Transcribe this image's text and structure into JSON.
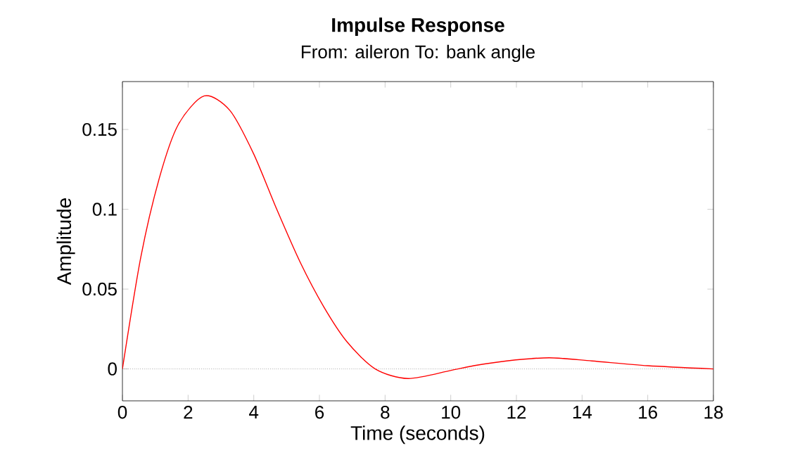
{
  "chart_data": {
    "type": "line",
    "title": "Impulse Response",
    "subtitle": "From: aileron  To: bank angle",
    "xlabel": "Time (seconds)",
    "ylabel": "Amplitude",
    "x": [
      0,
      0.56,
      1.13,
      1.7,
      2.49,
      3.27,
      3.99,
      4.7,
      5.41,
      6.13,
      6.84,
      7.7,
      8.7,
      9.99,
      10.7,
      11.7,
      13,
      14.3,
      16,
      18
    ],
    "series": [
      {
        "color": "#ff0000",
        "values": [
          0,
          0.07,
          0.12,
          0.153,
          0.171,
          0.162,
          0.135,
          0.1,
          0.067,
          0.039,
          0.017,
          0,
          -0.006,
          -0.001,
          0.002,
          0.005,
          0.007,
          0.005,
          0.002,
          0
        ]
      }
    ],
    "xlim": [
      0,
      18
    ],
    "ylim": [
      -0.02,
      0.18
    ],
    "xticks": [
      0,
      2,
      4,
      6,
      8,
      10,
      12,
      14,
      16,
      18
    ],
    "yticks": [
      0,
      0.05,
      0.1,
      0.15
    ],
    "ref_lines": [
      {
        "axis": "y",
        "value": 0,
        "color": "#808080",
        "line_style": "dotted"
      }
    ],
    "grid": false,
    "marker": "none",
    "line_style": "solid"
  }
}
